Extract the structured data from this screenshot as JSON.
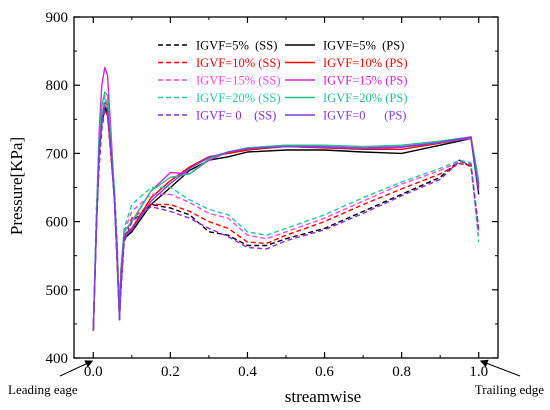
{
  "chart_data": {
    "type": "line",
    "xlabel": "streamwise",
    "ylabel": "Pressure[KPa]",
    "xlim": [
      -0.05,
      1.05
    ],
    "ylim": [
      400,
      900
    ],
    "xticks": [
      0.0,
      0.2,
      0.4,
      0.6,
      0.8,
      1.0
    ],
    "xtick_labels": [
      "0.0",
      "0.2",
      "0.4",
      "0.6",
      "0.8",
      "1.0"
    ],
    "yticks": [
      400,
      500,
      600,
      700,
      800,
      900
    ],
    "ytick_labels": [
      "400",
      "500",
      "600",
      "700",
      "800",
      "900"
    ],
    "legend_position": "top-center",
    "annotations": {
      "left": "Leading eage",
      "right": "Trailing edge"
    },
    "series": [
      {
        "name": "IGVF=5%  (SS)",
        "color": "#000000",
        "dash": true,
        "points": [
          [
            0,
            440
          ],
          [
            0.008,
            600
          ],
          [
            0.015,
            690
          ],
          [
            0.022,
            740
          ],
          [
            0.03,
            768
          ],
          [
            0.037,
            760
          ],
          [
            0.045,
            710
          ],
          [
            0.055,
            640
          ],
          [
            0.062,
            560
          ],
          [
            0.068,
            460
          ],
          [
            0.072,
            500
          ],
          [
            0.08,
            570
          ],
          [
            0.1,
            600
          ],
          [
            0.15,
            625
          ],
          [
            0.2,
            620
          ],
          [
            0.25,
            610
          ],
          [
            0.3,
            585
          ],
          [
            0.35,
            580
          ],
          [
            0.4,
            565
          ],
          [
            0.45,
            565
          ],
          [
            0.5,
            575
          ],
          [
            0.6,
            590
          ],
          [
            0.7,
            615
          ],
          [
            0.8,
            640
          ],
          [
            0.9,
            665
          ],
          [
            0.95,
            690
          ],
          [
            0.98,
            680
          ],
          [
            1.0,
            585
          ]
        ]
      },
      {
        "name": "IGVF=5%  (PS)",
        "color": "#000000",
        "dash": false,
        "points": [
          [
            0,
            440
          ],
          [
            0.008,
            590
          ],
          [
            0.015,
            700
          ],
          [
            0.022,
            745
          ],
          [
            0.03,
            765
          ],
          [
            0.037,
            760
          ],
          [
            0.045,
            710
          ],
          [
            0.055,
            630
          ],
          [
            0.062,
            540
          ],
          [
            0.068,
            456
          ],
          [
            0.072,
            520
          ],
          [
            0.08,
            575
          ],
          [
            0.1,
            585
          ],
          [
            0.15,
            625
          ],
          [
            0.2,
            650
          ],
          [
            0.25,
            675
          ],
          [
            0.3,
            690
          ],
          [
            0.35,
            695
          ],
          [
            0.4,
            702
          ],
          [
            0.5,
            705
          ],
          [
            0.6,
            705
          ],
          [
            0.7,
            702
          ],
          [
            0.8,
            700
          ],
          [
            0.9,
            712
          ],
          [
            0.95,
            718
          ],
          [
            0.98,
            722
          ],
          [
            1.0,
            640
          ]
        ]
      },
      {
        "name": "IGVF=10% (SS)",
        "color": "#ff0000",
        "dash": true,
        "points": [
          [
            0,
            440
          ],
          [
            0.008,
            600
          ],
          [
            0.015,
            680
          ],
          [
            0.022,
            735
          ],
          [
            0.03,
            765
          ],
          [
            0.037,
            755
          ],
          [
            0.045,
            700
          ],
          [
            0.055,
            635
          ],
          [
            0.062,
            560
          ],
          [
            0.068,
            460
          ],
          [
            0.072,
            505
          ],
          [
            0.08,
            575
          ],
          [
            0.1,
            605
          ],
          [
            0.15,
            625
          ],
          [
            0.2,
            625
          ],
          [
            0.25,
            615
          ],
          [
            0.3,
            600
          ],
          [
            0.35,
            590
          ],
          [
            0.4,
            570
          ],
          [
            0.45,
            568
          ],
          [
            0.5,
            580
          ],
          [
            0.6,
            600
          ],
          [
            0.7,
            625
          ],
          [
            0.8,
            648
          ],
          [
            0.9,
            670
          ],
          [
            0.95,
            685
          ],
          [
            0.98,
            682
          ],
          [
            1.0,
            590
          ]
        ]
      },
      {
        "name": "IGVF=10% (PS)",
        "color": "#ff0000",
        "dash": false,
        "points": [
          [
            0,
            440
          ],
          [
            0.008,
            590
          ],
          [
            0.015,
            710
          ],
          [
            0.022,
            755
          ],
          [
            0.03,
            775
          ],
          [
            0.037,
            770
          ],
          [
            0.045,
            715
          ],
          [
            0.055,
            630
          ],
          [
            0.062,
            540
          ],
          [
            0.068,
            456
          ],
          [
            0.072,
            525
          ],
          [
            0.08,
            580
          ],
          [
            0.1,
            590
          ],
          [
            0.15,
            635
          ],
          [
            0.2,
            660
          ],
          [
            0.25,
            680
          ],
          [
            0.3,
            695
          ],
          [
            0.35,
            700
          ],
          [
            0.4,
            705
          ],
          [
            0.5,
            710
          ],
          [
            0.6,
            708
          ],
          [
            0.7,
            706
          ],
          [
            0.8,
            706
          ],
          [
            0.9,
            715
          ],
          [
            0.95,
            720
          ],
          [
            0.98,
            724
          ],
          [
            1.0,
            650
          ]
        ]
      },
      {
        "name": "IGVF=15% (SS)",
        "color": "#ff44ff",
        "dash": true,
        "points": [
          [
            0,
            440
          ],
          [
            0.008,
            610
          ],
          [
            0.015,
            690
          ],
          [
            0.022,
            750
          ],
          [
            0.03,
            785
          ],
          [
            0.037,
            770
          ],
          [
            0.045,
            710
          ],
          [
            0.055,
            645
          ],
          [
            0.062,
            565
          ],
          [
            0.068,
            460
          ],
          [
            0.072,
            510
          ],
          [
            0.08,
            585
          ],
          [
            0.1,
            615
          ],
          [
            0.15,
            640
          ],
          [
            0.2,
            640
          ],
          [
            0.25,
            628
          ],
          [
            0.3,
            612
          ],
          [
            0.35,
            605
          ],
          [
            0.4,
            580
          ],
          [
            0.45,
            575
          ],
          [
            0.5,
            585
          ],
          [
            0.6,
            605
          ],
          [
            0.7,
            630
          ],
          [
            0.8,
            655
          ],
          [
            0.9,
            675
          ],
          [
            0.95,
            688
          ],
          [
            0.98,
            684
          ],
          [
            1.0,
            580
          ]
        ]
      },
      {
        "name": "IGVF=15% (PS)",
        "color": "#dd22dd",
        "dash": false,
        "points": [
          [
            0,
            440
          ],
          [
            0.008,
            600
          ],
          [
            0.015,
            730
          ],
          [
            0.022,
            800
          ],
          [
            0.03,
            826
          ],
          [
            0.037,
            815
          ],
          [
            0.045,
            740
          ],
          [
            0.055,
            640
          ],
          [
            0.062,
            545
          ],
          [
            0.068,
            456
          ],
          [
            0.072,
            530
          ],
          [
            0.08,
            585
          ],
          [
            0.1,
            600
          ],
          [
            0.15,
            645
          ],
          [
            0.2,
            672
          ],
          [
            0.25,
            670
          ],
          [
            0.3,
            690
          ],
          [
            0.35,
            702
          ],
          [
            0.4,
            708
          ],
          [
            0.5,
            712
          ],
          [
            0.6,
            710
          ],
          [
            0.7,
            708
          ],
          [
            0.8,
            710
          ],
          [
            0.9,
            716
          ],
          [
            0.95,
            720
          ],
          [
            0.98,
            722
          ],
          [
            1.0,
            655
          ]
        ]
      },
      {
        "name": "IGVF=20% (SS)",
        "color": "#22cc99",
        "dash": true,
        "points": [
          [
            0,
            440
          ],
          [
            0.008,
            620
          ],
          [
            0.015,
            700
          ],
          [
            0.022,
            755
          ],
          [
            0.03,
            780
          ],
          [
            0.037,
            770
          ],
          [
            0.045,
            715
          ],
          [
            0.055,
            650
          ],
          [
            0.062,
            570
          ],
          [
            0.068,
            460
          ],
          [
            0.072,
            515
          ],
          [
            0.08,
            590
          ],
          [
            0.1,
            625
          ],
          [
            0.15,
            650
          ],
          [
            0.2,
            650
          ],
          [
            0.25,
            632
          ],
          [
            0.3,
            618
          ],
          [
            0.35,
            610
          ],
          [
            0.4,
            585
          ],
          [
            0.45,
            580
          ],
          [
            0.5,
            590
          ],
          [
            0.6,
            610
          ],
          [
            0.7,
            635
          ],
          [
            0.8,
            658
          ],
          [
            0.9,
            678
          ],
          [
            0.95,
            690
          ],
          [
            0.98,
            686
          ],
          [
            1.0,
            570
          ]
        ]
      },
      {
        "name": "IGVF=20% (PS)",
        "color": "#1fc08a",
        "dash": false,
        "points": [
          [
            0,
            440
          ],
          [
            0.008,
            600
          ],
          [
            0.015,
            720
          ],
          [
            0.022,
            770
          ],
          [
            0.03,
            790
          ],
          [
            0.037,
            785
          ],
          [
            0.045,
            725
          ],
          [
            0.055,
            635
          ],
          [
            0.062,
            545
          ],
          [
            0.068,
            456
          ],
          [
            0.072,
            530
          ],
          [
            0.08,
            585
          ],
          [
            0.1,
            600
          ],
          [
            0.15,
            645
          ],
          [
            0.2,
            665
          ],
          [
            0.25,
            670
          ],
          [
            0.3,
            692
          ],
          [
            0.35,
            702
          ],
          [
            0.4,
            708
          ],
          [
            0.5,
            712
          ],
          [
            0.6,
            712
          ],
          [
            0.7,
            710
          ],
          [
            0.8,
            712
          ],
          [
            0.9,
            718
          ],
          [
            0.95,
            722
          ],
          [
            0.98,
            724
          ],
          [
            1.0,
            660
          ]
        ]
      },
      {
        "name": "IGVF= 0    (SS)",
        "color": "#8a2be2",
        "dash": true,
        "points": [
          [
            0,
            440
          ],
          [
            0.008,
            595
          ],
          [
            0.015,
            685
          ],
          [
            0.022,
            738
          ],
          [
            0.03,
            762
          ],
          [
            0.037,
            758
          ],
          [
            0.045,
            705
          ],
          [
            0.055,
            635
          ],
          [
            0.062,
            555
          ],
          [
            0.068,
            460
          ],
          [
            0.072,
            500
          ],
          [
            0.08,
            570
          ],
          [
            0.1,
            600
          ],
          [
            0.15,
            622
          ],
          [
            0.2,
            615
          ],
          [
            0.25,
            605
          ],
          [
            0.3,
            590
          ],
          [
            0.35,
            578
          ],
          [
            0.4,
            562
          ],
          [
            0.45,
            560
          ],
          [
            0.5,
            572
          ],
          [
            0.6,
            588
          ],
          [
            0.7,
            612
          ],
          [
            0.8,
            638
          ],
          [
            0.9,
            662
          ],
          [
            0.95,
            688
          ],
          [
            0.98,
            684
          ],
          [
            1.0,
            585
          ]
        ]
      },
      {
        "name": "IGVF=0      (PS)",
        "color": "#7d3fe0",
        "dash": false,
        "points": [
          [
            0,
            440
          ],
          [
            0.008,
            590
          ],
          [
            0.015,
            705
          ],
          [
            0.022,
            750
          ],
          [
            0.03,
            770
          ],
          [
            0.037,
            765
          ],
          [
            0.045,
            712
          ],
          [
            0.055,
            630
          ],
          [
            0.062,
            540
          ],
          [
            0.068,
            456
          ],
          [
            0.072,
            522
          ],
          [
            0.08,
            578
          ],
          [
            0.1,
            588
          ],
          [
            0.15,
            630
          ],
          [
            0.2,
            656
          ],
          [
            0.25,
            678
          ],
          [
            0.3,
            694
          ],
          [
            0.35,
            702
          ],
          [
            0.4,
            707
          ],
          [
            0.5,
            710
          ],
          [
            0.6,
            709
          ],
          [
            0.7,
            707
          ],
          [
            0.8,
            709
          ],
          [
            0.9,
            716
          ],
          [
            0.95,
            721
          ],
          [
            0.98,
            724
          ],
          [
            1.0,
            645
          ]
        ]
      }
    ]
  }
}
